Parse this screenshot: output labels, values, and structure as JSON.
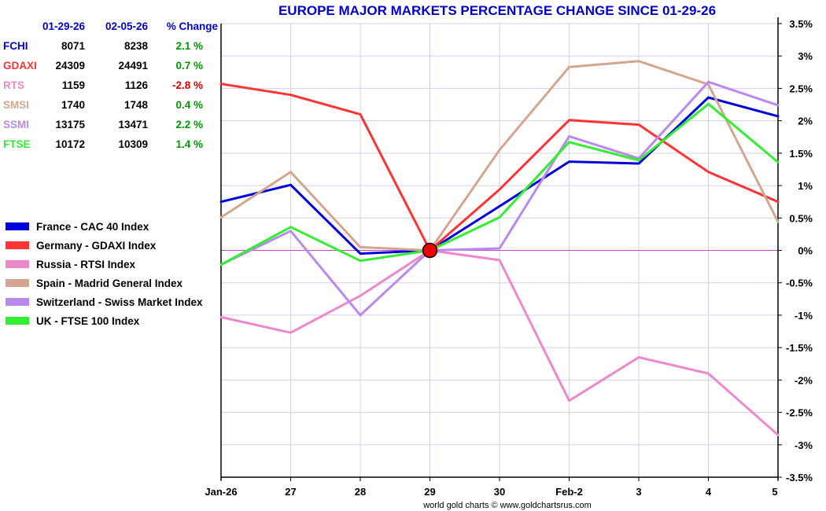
{
  "chart_data": {
    "type": "line",
    "title": "EUROPE MAJOR MARKETS PERCENTAGE CHANGE SINCE 01-29-26",
    "credit": "world gold charts © www.goldchartsrus.com",
    "categories": [
      "Jan-26",
      "27",
      "28",
      "29",
      "30",
      "Feb-2",
      "3",
      "4",
      "5"
    ],
    "y_ticks": [
      "3.5%",
      "3%",
      "2.5%",
      "2%",
      "1.5%",
      "1%",
      "0.5%",
      "0%",
      "-0.5%",
      "-1%",
      "-1.5%",
      "-2%",
      "-2.5%",
      "-3%",
      "-3.5%"
    ],
    "y_tick_values": [
      3.5,
      3,
      2.5,
      2,
      1.5,
      1,
      0.5,
      0,
      -0.5,
      -1,
      -1.5,
      -2,
      -2.5,
      -3,
      -3.5
    ],
    "ylim": [
      -3.5,
      3.5
    ],
    "base_index": 3,
    "series": [
      {
        "name": "France - CAC 40 Index",
        "color": "#0000dd",
        "values": [
          0.75,
          1.01,
          -0.05,
          0.0,
          0.68,
          1.37,
          1.34,
          2.36,
          2.07
        ]
      },
      {
        "name": "Germany - GDAXI Index",
        "color": "#ff3333",
        "values": [
          2.57,
          2.4,
          2.1,
          0.0,
          0.94,
          2.01,
          1.94,
          1.21,
          0.75
        ]
      },
      {
        "name": "Russia - RTSI Index",
        "color": "#ee88cc",
        "values": [
          -1.03,
          -1.27,
          -0.7,
          0.0,
          -0.15,
          -2.32,
          -1.65,
          -1.9,
          -2.85
        ]
      },
      {
        "name": "Spain - Madrid General Index",
        "color": "#d4a590",
        "values": [
          0.51,
          1.21,
          0.05,
          0.0,
          1.55,
          2.83,
          2.92,
          2.56,
          0.44
        ]
      },
      {
        "name": "Switzerland - Swiss Market Index",
        "color": "#bb88ee",
        "values": [
          -0.22,
          0.3,
          -1.0,
          0.0,
          0.03,
          1.76,
          1.42,
          2.6,
          2.24
        ]
      },
      {
        "name": "UK - FTSE 100 Index",
        "color": "#33ee33",
        "values": [
          -0.22,
          0.36,
          -0.16,
          0.0,
          0.51,
          1.67,
          1.39,
          2.26,
          1.36
        ]
      }
    ],
    "summary_table": {
      "headers": [
        "01-29-26",
        "02-05-26",
        "% Change"
      ],
      "rows": [
        {
          "symbol": "FCHI",
          "start": "8071",
          "end": "8238",
          "change": "2.1 %",
          "symbol_color": "#0000dd",
          "change_color": "#009900"
        },
        {
          "symbol": "GDAXI",
          "start": "24309",
          "end": "24491",
          "change": "0.7 %",
          "symbol_color": "#ff3333",
          "change_color": "#009900"
        },
        {
          "symbol": "RTS",
          "start": "1159",
          "end": "1126",
          "change": "-2.8 %",
          "symbol_color": "#ee88cc",
          "change_color": "#dd0000"
        },
        {
          "symbol": "SMSI",
          "start": "1740",
          "end": "1748",
          "change": "0.4 %",
          "symbol_color": "#d4a590",
          "change_color": "#009900"
        },
        {
          "symbol": "SSMI",
          "start": "13175",
          "end": "13471",
          "change": "2.2 %",
          "symbol_color": "#bb88ee",
          "change_color": "#009900"
        },
        {
          "symbol": "FTSE",
          "start": "10172",
          "end": "10309",
          "change": "1.4 %",
          "symbol_color": "#33ee33",
          "change_color": "#009900"
        }
      ]
    },
    "zero_line_color": "#cc44cc",
    "marker_color": "#ee0000",
    "header_color": "#0000cc"
  }
}
